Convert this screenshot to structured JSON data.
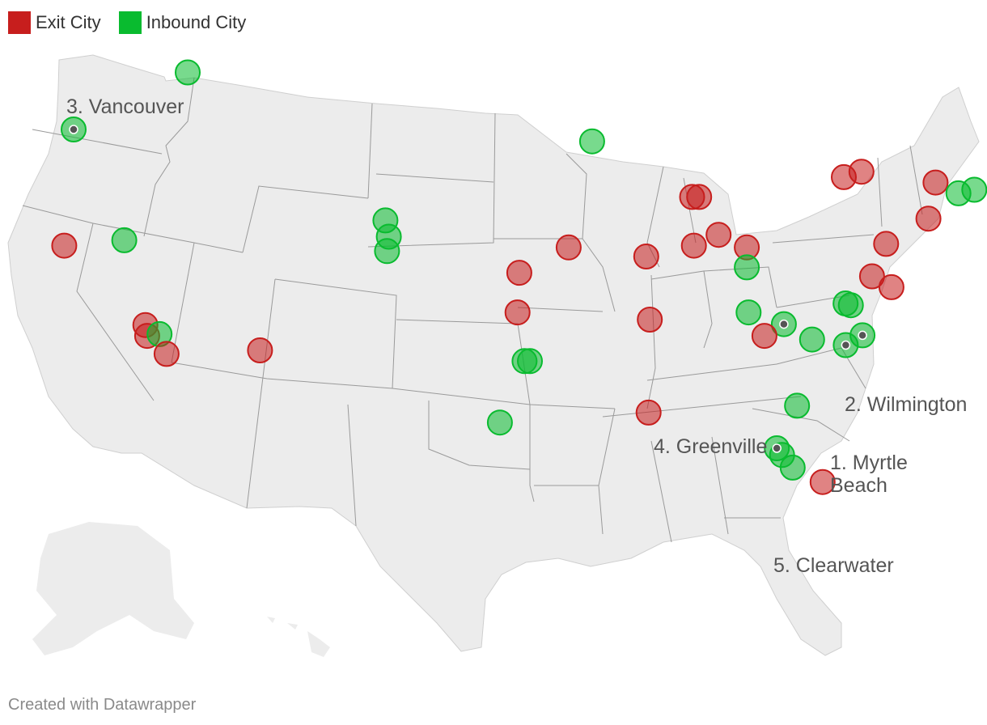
{
  "legend": {
    "exit_label": "Exit City",
    "inbound_label": "Inbound City",
    "exit_color": "#c71e1d",
    "inbound_color": "#09bb2f"
  },
  "labels": {
    "myrtle_beach_line1": "1. Myrtle",
    "myrtle_beach_line2": "Beach",
    "wilmington": "2. Wilmington",
    "vancouver": "3. Vancouver",
    "greenville": "4. Greenville",
    "clearwater": "5. Clearwater"
  },
  "credit": "Created with Datawrapper",
  "map_fill": "#ececec",
  "border_color": "#9a9a9a",
  "markers": [
    {
      "type": "inbound",
      "lon": -122.67,
      "lat": 45.64
    },
    {
      "type": "inbound",
      "lon": -116.2,
      "lat": 48.8
    },
    {
      "type": "exit",
      "lon": -123.2,
      "lat": 39.2
    },
    {
      "type": "inbound",
      "lon": -119.8,
      "lat": 39.5
    },
    {
      "type": "exit",
      "lon": -118.6,
      "lat": 34.8
    },
    {
      "type": "exit",
      "lon": -118.5,
      "lat": 34.2
    },
    {
      "type": "inbound",
      "lon": -117.8,
      "lat": 34.3
    },
    {
      "type": "exit",
      "lon": -117.4,
      "lat": 33.2
    },
    {
      "type": "exit",
      "lon": -112.1,
      "lat": 33.4
    },
    {
      "type": "inbound",
      "lon": -104.99,
      "lat": 40.6
    },
    {
      "type": "inbound",
      "lon": -104.8,
      "lat": 39.7
    },
    {
      "type": "inbound",
      "lon": -104.9,
      "lat": 38.9
    },
    {
      "type": "inbound",
      "lon": -93.27,
      "lat": 44.98
    },
    {
      "type": "exit",
      "lon": -97.4,
      "lat": 37.7
    },
    {
      "type": "exit",
      "lon": -97.5,
      "lat": 35.5
    },
    {
      "type": "inbound",
      "lon": -97.1,
      "lat": 32.8
    },
    {
      "type": "inbound",
      "lon": -96.8,
      "lat": 32.8
    },
    {
      "type": "inbound",
      "lon": -98.5,
      "lat": 29.4
    },
    {
      "type": "exit",
      "lon": -94.6,
      "lat": 39.1
    },
    {
      "type": "exit",
      "lon": -90.2,
      "lat": 38.6
    },
    {
      "type": "exit",
      "lon": -90.0,
      "lat": 35.1
    },
    {
      "type": "exit",
      "lon": -90.07,
      "lat": 29.95
    },
    {
      "type": "exit",
      "lon": -87.6,
      "lat": 41.9
    },
    {
      "type": "exit",
      "lon": -87.2,
      "lat": 41.9
    },
    {
      "type": "exit",
      "lon": -86.1,
      "lat": 39.8
    },
    {
      "type": "exit",
      "lon": -87.5,
      "lat": 39.2
    },
    {
      "type": "exit",
      "lon": -84.5,
      "lat": 39.1
    },
    {
      "type": "inbound",
      "lon": -84.5,
      "lat": 38.0
    },
    {
      "type": "exit",
      "lon": -79.0,
      "lat": 43.0
    },
    {
      "type": "exit",
      "lon": -78.0,
      "lat": 43.3
    },
    {
      "type": "exit",
      "lon": -73.8,
      "lat": 42.7
    },
    {
      "type": "inbound",
      "lon": -72.5,
      "lat": 42.1
    },
    {
      "type": "inbound",
      "lon": -71.6,
      "lat": 42.3
    },
    {
      "type": "exit",
      "lon": -74.2,
      "lat": 40.7
    },
    {
      "type": "exit",
      "lon": -76.6,
      "lat": 39.3
    },
    {
      "type": "exit",
      "lon": -77.4,
      "lat": 37.5
    },
    {
      "type": "exit",
      "lon": -76.3,
      "lat": 36.9
    },
    {
      "type": "inbound",
      "lon": -78.6,
      "lat": 35.9
    },
    {
      "type": "inbound",
      "lon": -78.9,
      "lat": 36.0
    },
    {
      "type": "inbound",
      "lon": -77.94,
      "lat": 34.23
    },
    {
      "type": "inbound",
      "lon": -78.89,
      "lat": 33.69
    },
    {
      "type": "inbound",
      "lon": -80.8,
      "lat": 34.0
    },
    {
      "type": "inbound",
      "lon": -82.4,
      "lat": 34.85
    },
    {
      "type": "inbound",
      "lon": -84.4,
      "lat": 35.5
    },
    {
      "type": "exit",
      "lon": -83.5,
      "lat": 34.2
    },
    {
      "type": "inbound",
      "lon": -81.65,
      "lat": 30.33
    },
    {
      "type": "inbound",
      "lon": -82.8,
      "lat": 27.97
    },
    {
      "type": "inbound",
      "lon": -82.5,
      "lat": 27.6
    },
    {
      "type": "inbound",
      "lon": -81.9,
      "lat": 26.9
    },
    {
      "type": "exit",
      "lon": -80.2,
      "lat": 26.1
    }
  ],
  "label_dots": [
    {
      "lon": -122.67,
      "lat": 45.64
    },
    {
      "lon": -77.94,
      "lat": 34.23
    },
    {
      "lon": -78.89,
      "lat": 33.69
    },
    {
      "lon": -82.4,
      "lat": 34.85
    },
    {
      "lon": -82.8,
      "lat": 27.97
    }
  ]
}
